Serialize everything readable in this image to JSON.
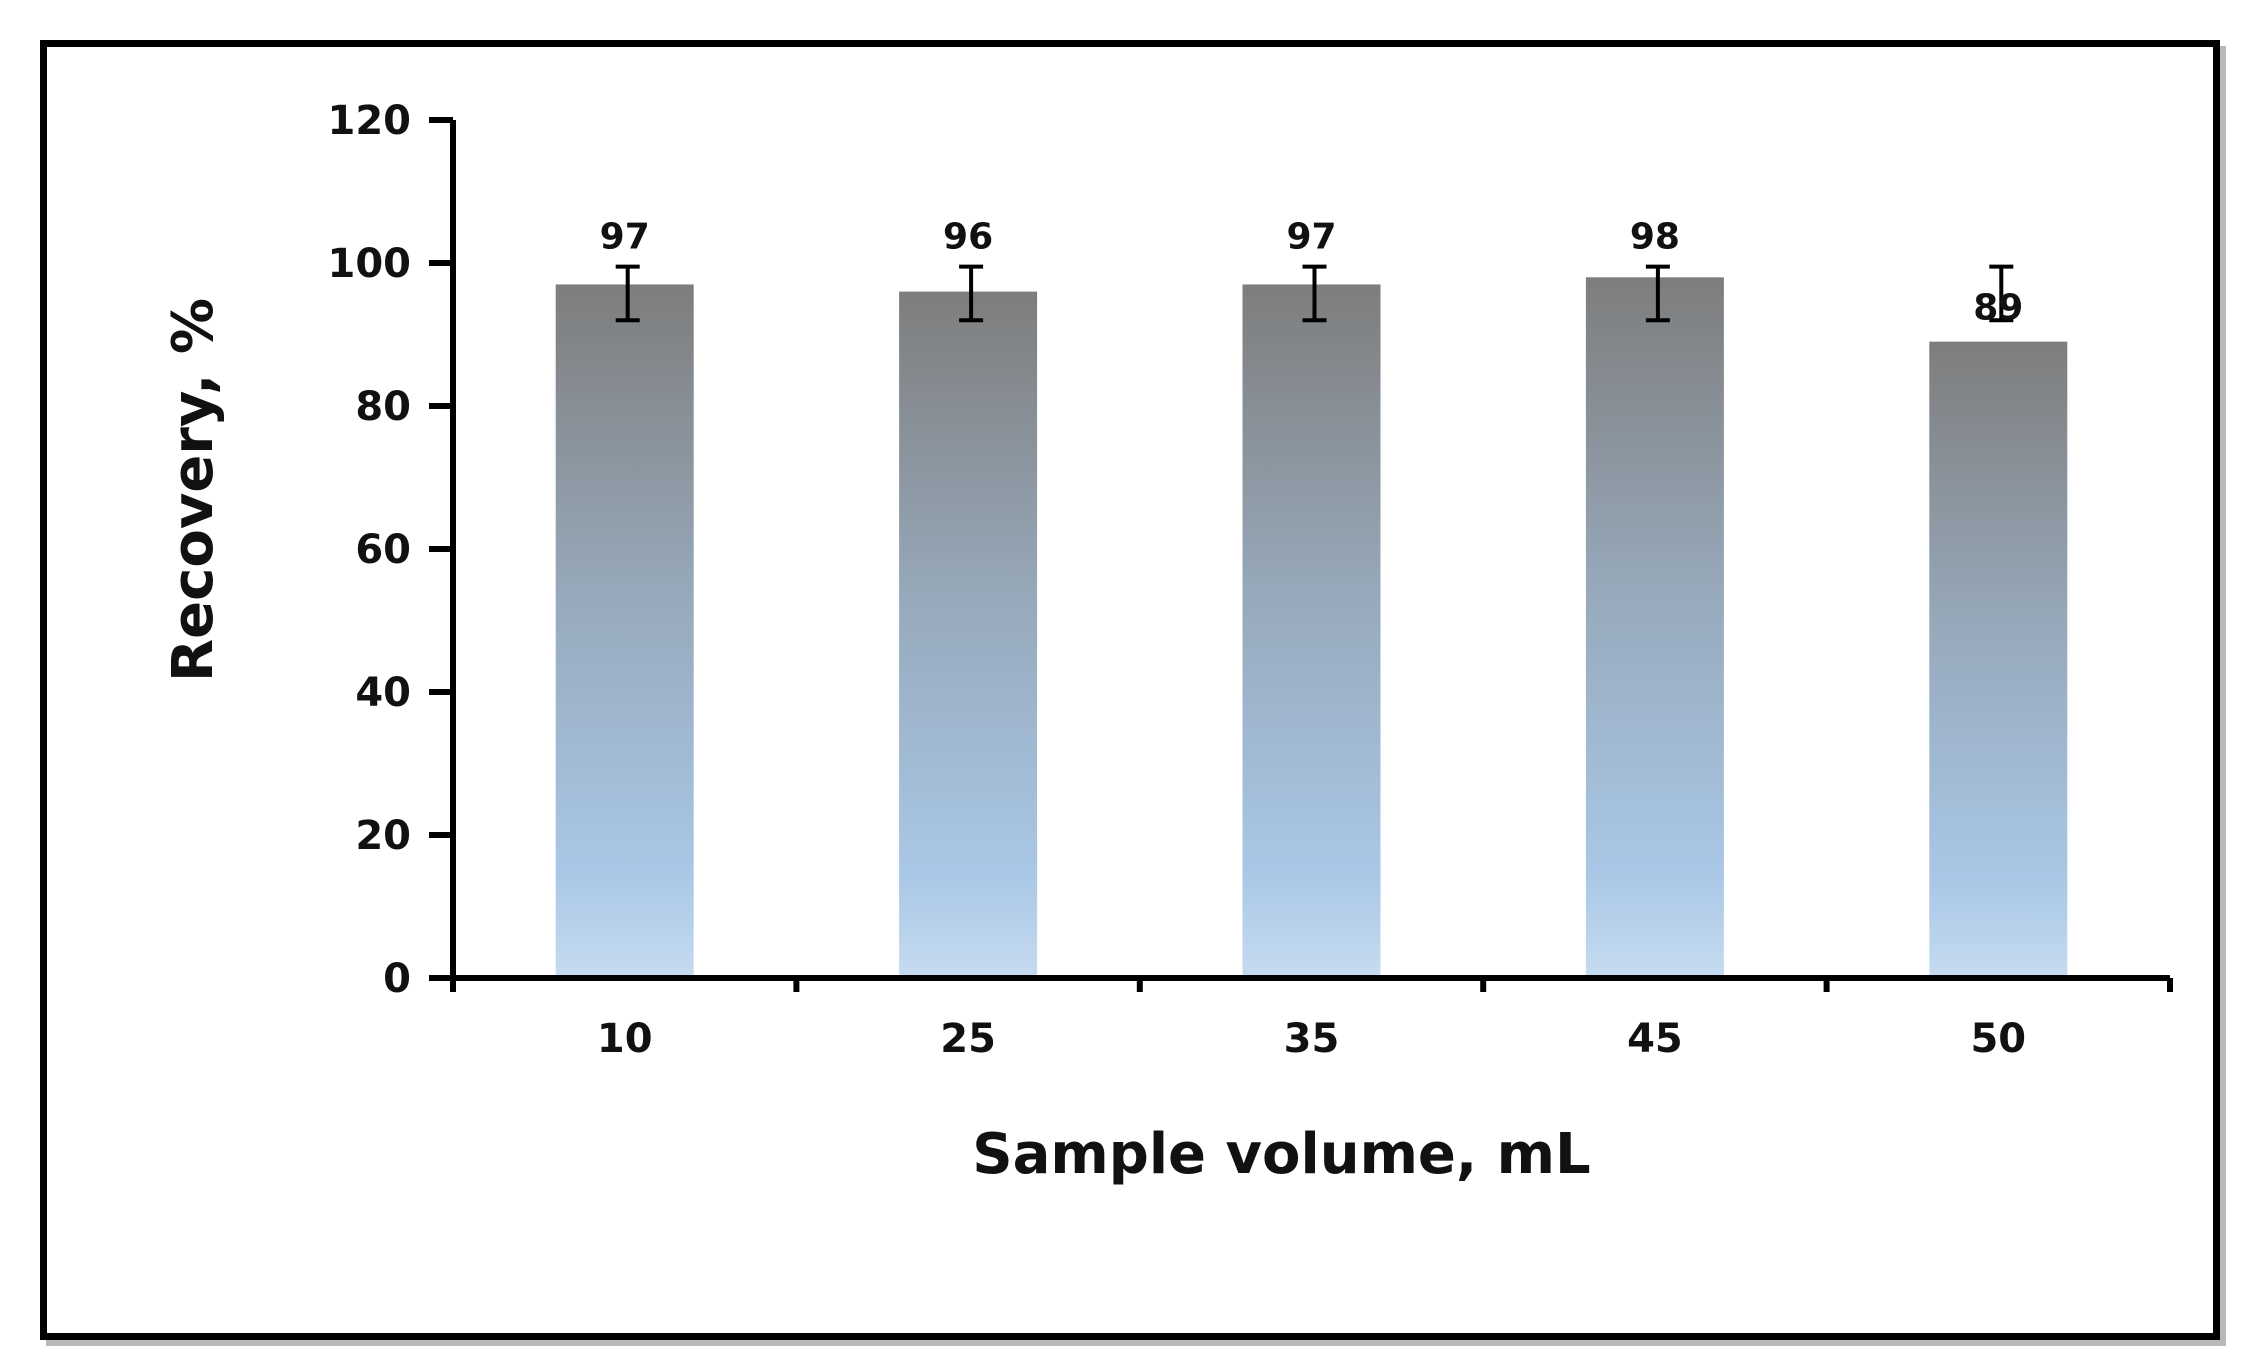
{
  "chart_data": {
    "type": "bar",
    "title": "",
    "xlabel": "Sample volume, mL",
    "ylabel": "Recovery, %",
    "categories": [
      "10",
      "25",
      "35",
      "45",
      "50"
    ],
    "values": [
      97,
      96,
      97,
      98,
      89
    ],
    "data_labels": [
      "97",
      "96",
      "97",
      "98",
      "89"
    ],
    "error_bars": [
      {
        "low": 92,
        "high": 99.5
      },
      {
        "low": 92,
        "high": 99.5
      },
      {
        "low": 92,
        "high": 99.5
      },
      {
        "low": 92,
        "high": 99.5
      },
      {
        "low": 92,
        "high": 99.5
      }
    ],
    "ylim": [
      0,
      120
    ],
    "yticks": [
      "0",
      "20",
      "40",
      "60",
      "80",
      "100",
      "120"
    ],
    "grid": false,
    "legend": "none",
    "colors": {
      "bar_top": "#7d7d7d",
      "bar_mid": "#97a9bb",
      "bar_bottom": "#a9c7e6",
      "bar_base": "#c5dbf0",
      "axis": "#000000"
    }
  }
}
